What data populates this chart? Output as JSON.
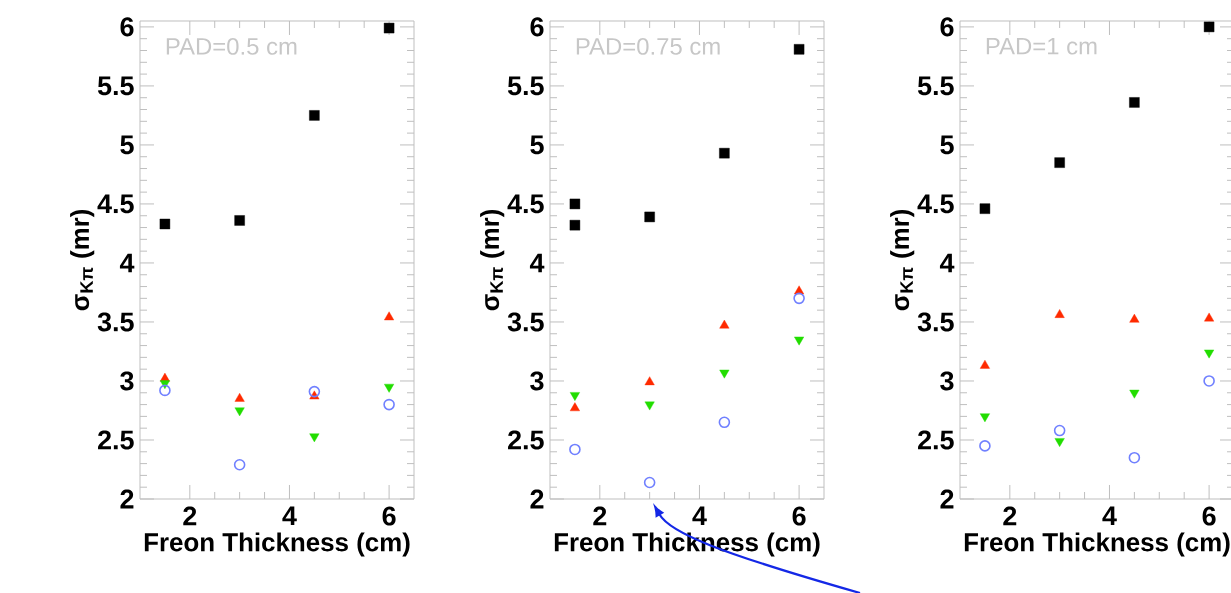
{
  "chart_data": [
    {
      "type": "scatter",
      "title": "PAD=0.5 cm",
      "xlabel": "Freon Thickness (cm)",
      "ylabel": "σ$_{Kπ}$ (mr)",
      "xlim": [
        1,
        6.5
      ],
      "ylim": [
        2,
        6.05
      ],
      "xticks": [
        2,
        4,
        6
      ],
      "yticks": [
        2,
        2.5,
        3,
        3.5,
        4,
        4.5,
        5,
        5.5,
        6
      ],
      "grid": false,
      "series": [
        {
          "color": "#000000",
          "marker": "square",
          "x": [
            1.5,
            3,
            4.5,
            6
          ],
          "values": [
            4.33,
            4.36,
            5.25,
            5.99
          ]
        },
        {
          "color": "#ff2a00",
          "marker": "triangle",
          "x": [
            1.5,
            3,
            4.5,
            6
          ],
          "values": [
            3.02,
            2.85,
            2.87,
            3.54
          ]
        },
        {
          "color": "#22dd00",
          "marker": "triangle-down",
          "x": [
            1.5,
            3,
            4.5,
            6
          ],
          "values": [
            2.98,
            2.75,
            2.53,
            2.95
          ]
        },
        {
          "color": "#7080ff",
          "marker": "circle",
          "x": [
            1.5,
            3,
            4.5,
            6
          ],
          "values": [
            2.92,
            2.29,
            2.91,
            2.8
          ]
        }
      ]
    },
    {
      "type": "scatter",
      "title": "PAD=0.75 cm",
      "xlabel": "Freon Thickness (cm)",
      "ylabel": "σ$_{Kπ}$ (mr)",
      "xlim": [
        1,
        6.5
      ],
      "ylim": [
        2,
        6.05
      ],
      "xticks": [
        2,
        4,
        6
      ],
      "yticks": [
        2,
        2.5,
        3,
        3.5,
        4,
        4.5,
        5,
        5.5,
        6
      ],
      "grid": false,
      "series": [
        {
          "color": "#000000",
          "marker": "square",
          "x": [
            1.5,
            1.5,
            3,
            4.5,
            6
          ],
          "values": [
            4.5,
            4.32,
            4.39,
            4.93,
            5.81
          ]
        },
        {
          "color": "#ff2a00",
          "marker": "triangle",
          "x": [
            1.5,
            3,
            4.5,
            6
          ],
          "values": [
            2.77,
            2.99,
            3.47,
            3.76
          ]
        },
        {
          "color": "#22dd00",
          "marker": "triangle-down",
          "x": [
            1.5,
            3,
            4.5,
            6
          ],
          "values": [
            2.88,
            2.8,
            3.07,
            3.35
          ]
        },
        {
          "color": "#7080ff",
          "marker": "circle",
          "x": [
            1.5,
            3,
            4.5,
            6
          ],
          "values": [
            2.42,
            2.14,
            2.65,
            3.7
          ]
        }
      ]
    },
    {
      "type": "scatter",
      "title": "PAD=1 cm",
      "xlabel": "Freon Thickness (cm)",
      "ylabel": "σ$_{Kπ}$ (mr)",
      "xlim": [
        1,
        6.5
      ],
      "ylim": [
        2,
        6.05
      ],
      "xticks": [
        2,
        4,
        6
      ],
      "yticks": [
        2,
        2.5,
        3,
        3.5,
        4,
        4.5,
        5,
        5.5,
        6
      ],
      "grid": false,
      "series": [
        {
          "color": "#000000",
          "marker": "square",
          "x": [
            1.5,
            3,
            4.5,
            6
          ],
          "values": [
            4.46,
            4.85,
            5.36,
            6.0
          ]
        },
        {
          "color": "#ff2a00",
          "marker": "triangle",
          "x": [
            1.5,
            3,
            4.5,
            6
          ],
          "values": [
            3.13,
            3.56,
            3.52,
            3.53
          ]
        },
        {
          "color": "#22dd00",
          "marker": "triangle-down",
          "x": [
            1.5,
            3,
            4.5,
            6
          ],
          "values": [
            2.7,
            2.49,
            2.9,
            3.24
          ]
        },
        {
          "color": "#7080ff",
          "marker": "circle",
          "x": [
            1.5,
            3,
            4.5,
            6
          ],
          "values": [
            2.45,
            2.58,
            2.35,
            3.0
          ]
        }
      ]
    }
  ]
}
